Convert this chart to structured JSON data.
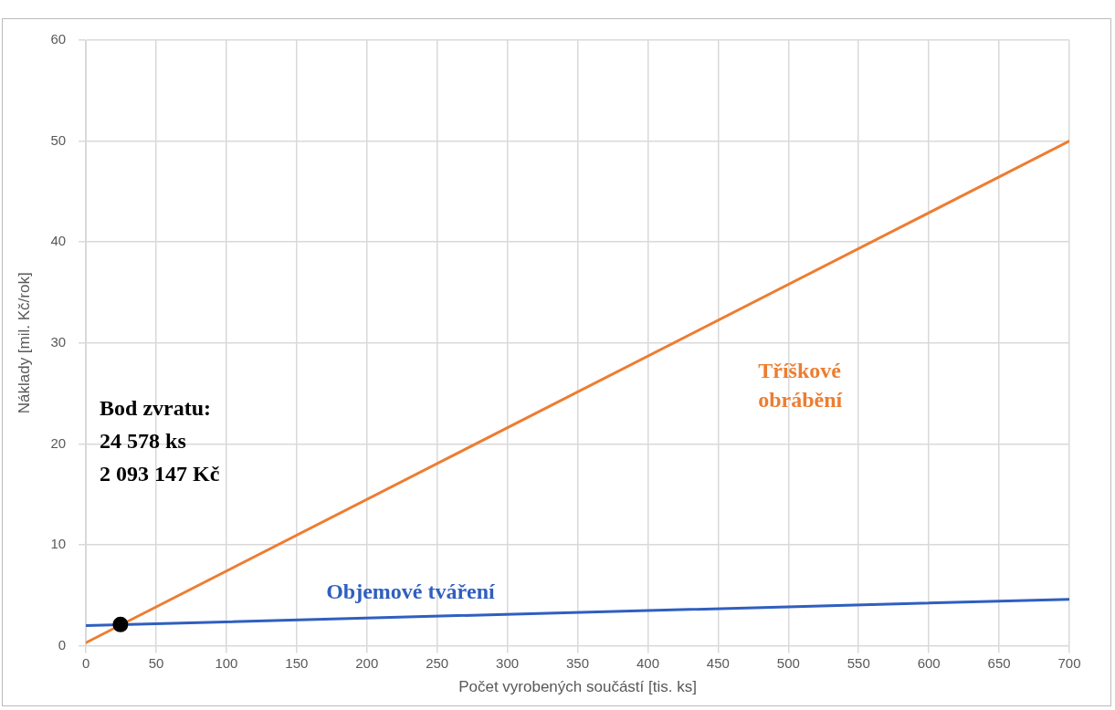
{
  "chart_data": {
    "type": "line",
    "xlabel": "Počet vyrobených součástí [tis. ks]",
    "ylabel": "Náklady [mil. Kč/rok]",
    "xlim": [
      0,
      700
    ],
    "xticks": [
      0,
      50,
      100,
      150,
      200,
      250,
      300,
      350,
      400,
      450,
      500,
      550,
      600,
      650,
      700
    ],
    "ylim": [
      0,
      60
    ],
    "yticks": [
      0,
      10,
      20,
      30,
      40,
      50,
      60
    ],
    "grid": true,
    "legend": false,
    "marker": "none",
    "line_style": "solid",
    "series": [
      {
        "name": "Tříškové obrábění",
        "color": "#ed7d31",
        "x": [
          0,
          700
        ],
        "values": [
          0.3,
          50
        ]
      },
      {
        "name": "Objemové tváření",
        "color": "#2f5fc0",
        "x": [
          0,
          700
        ],
        "values": [
          2.0,
          4.6
        ]
      },
      {
        "type": "scatter",
        "color": "#000000",
        "x": [
          24.578
        ],
        "values": [
          2.1
        ],
        "marker": "circle"
      }
    ],
    "annotations": [
      "Bod zvratu:\n24 578 ks\n2 093 147 Kč"
    ]
  }
}
